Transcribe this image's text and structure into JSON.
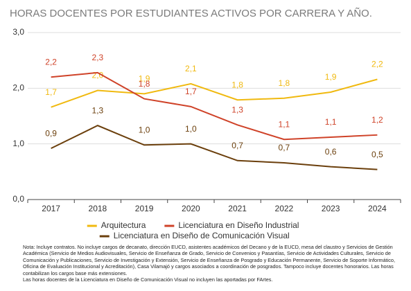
{
  "chart_data": {
    "type": "line",
    "title": "HORAS DOCENTES POR ESTUDIANTES ACTIVOS POR CARRERA Y AÑO.",
    "categories": [
      "2017",
      "2018",
      "2019",
      "2020",
      "2021",
      "2022",
      "2023",
      "2024"
    ],
    "series": [
      {
        "name": "Arquitectura",
        "color": "#f0b90f",
        "values": [
          1.66,
          1.96,
          1.9,
          2.08,
          1.79,
          1.82,
          1.93,
          2.16
        ],
        "value_labels": [
          "1,7",
          "2,0",
          "1,9",
          "2,1",
          "1,8",
          "1,8",
          "1,9",
          "2,2"
        ]
      },
      {
        "name": "Licenciatura en Diseño Industrial",
        "color": "#cf4228",
        "values": [
          2.2,
          2.28,
          1.81,
          1.67,
          1.34,
          1.08,
          1.12,
          1.16
        ],
        "value_labels": [
          "2,2",
          "2,3",
          "1,8",
          "1,7",
          "1,3",
          "1,1",
          "1,1",
          "1,2"
        ]
      },
      {
        "name": "Licenciatura en Diseño de Comunicación Visual",
        "color": "#6b3f0c",
        "values": [
          0.92,
          1.33,
          0.98,
          1.0,
          0.7,
          0.66,
          0.59,
          0.54
        ],
        "value_labels": [
          "0,9",
          "1,3",
          "1,0",
          "1,0",
          "0,7",
          "0,7",
          "0,6",
          "0,5"
        ]
      }
    ],
    "ylim": [
      0,
      3
    ],
    "yticks": [
      {
        "value": 0,
        "label": "0,0"
      },
      {
        "value": 1,
        "label": "1,0"
      },
      {
        "value": 2,
        "label": "2,0"
      },
      {
        "value": 3,
        "label": "3,0"
      }
    ],
    "grid": true,
    "notes": [
      "Nota: Incluye contratos. No incluye cargos de decanato, dirección EUCD, asistentes académicos del Decano y de la EUCD, mesa del claustro y Servicios de Gestión Académica (Servicio de Medios Audiovisuales, Servicio de Enseñanza de Grado, Servicio de Convenios y Pasantías, Servicio de Actividades Culturales, Servicio de Comunicación y Publicaciones, Servicio de Investigación y Extensión, Servicio de Enseñanza de Posgrado y Educación Permanente, Servicio de Soporte Informático, Oficina de Evaluación Institucional y Acreditación), Casa Vilamajó y cargos asociados a coordinación de posgrados. Tampoco incluye docentes honorarios. Las horas contabilizan los cargos base más extensiones.",
      "Las horas docentes de la Licenciatura en Diseño de Comunicación Visual no incluyen las aportadas por FArtes."
    ]
  }
}
